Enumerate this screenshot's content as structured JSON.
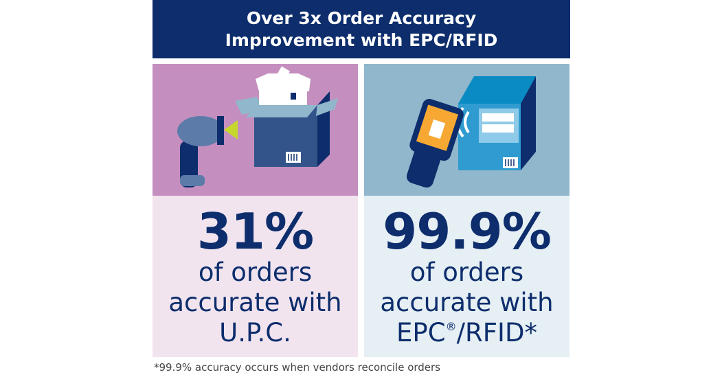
{
  "header": {
    "line1": "Over 3x Order Accuracy",
    "line2": "Improvement with EPC/RFID"
  },
  "left": {
    "stat": "31%",
    "line1": "of orders",
    "line2": "accurate with",
    "line3": "U.P.C.",
    "illustration": "barcode-scanner-box-icon",
    "color": "#c48fbf"
  },
  "right": {
    "stat": "99.9%",
    "line1": "of orders",
    "line2": "accurate with",
    "line3": "EPC",
    "registered": "®",
    "line3b": "/RFID*",
    "illustration": "rfid-reader-cabinet-icon",
    "color": "#90b7cb"
  },
  "footnote": "*99.9% accuracy occurs when vendors reconcile orders",
  "colors": {
    "navy": "#0d2d6c"
  }
}
